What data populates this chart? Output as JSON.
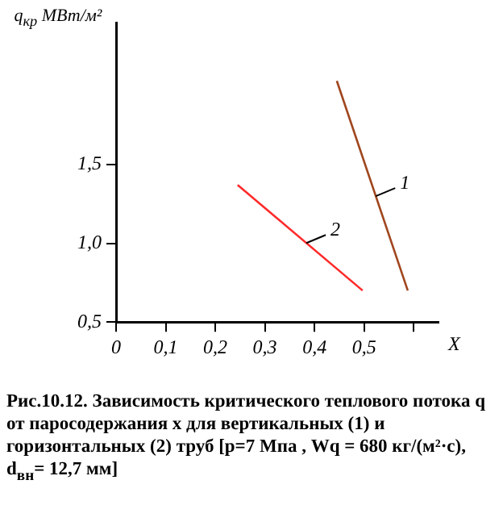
{
  "chart_data": {
    "type": "line",
    "ylabel": "q$_{кр}$ МВт/м²",
    "xlabel": "X",
    "xlim": [
      0,
      0.65
    ],
    "ylim": [
      0.5,
      2.4
    ],
    "xticks": [
      {
        "value": 0,
        "label": "0"
      },
      {
        "value": 0.1,
        "label": "0,1"
      },
      {
        "value": 0.2,
        "label": "0,2"
      },
      {
        "value": 0.3,
        "label": "0,3"
      },
      {
        "value": 0.4,
        "label": "0,4"
      },
      {
        "value": 0.5,
        "label": "0,5"
      },
      {
        "value": 0.6,
        "label": null
      }
    ],
    "yticks": [
      {
        "value": 0.5,
        "label": "0,5"
      },
      {
        "value": 1.0,
        "label": "1,0"
      },
      {
        "value": 1.5,
        "label": "1,5"
      }
    ],
    "series": [
      {
        "name": "1",
        "color": "#a0461e",
        "x": [
          0.445,
          0.588
        ],
        "values": [
          2.03,
          0.7
        ]
      },
      {
        "name": "2",
        "color": "#ff2a2a",
        "x": [
          0.245,
          0.497
        ],
        "values": [
          1.37,
          0.7
        ]
      }
    ],
    "grid": false,
    "legend": false,
    "marker": "none",
    "line_style": "solid",
    "annotations": [
      "Рис.10.12.  Зависимость критического теплового потока q от паросодержания x для вертикальных (1) и горизонтальных (2) труб [p=7 Мпа , Wq = 680 кг/(м²·с), d$_{вн}$= 12,7 мм]"
    ]
  }
}
